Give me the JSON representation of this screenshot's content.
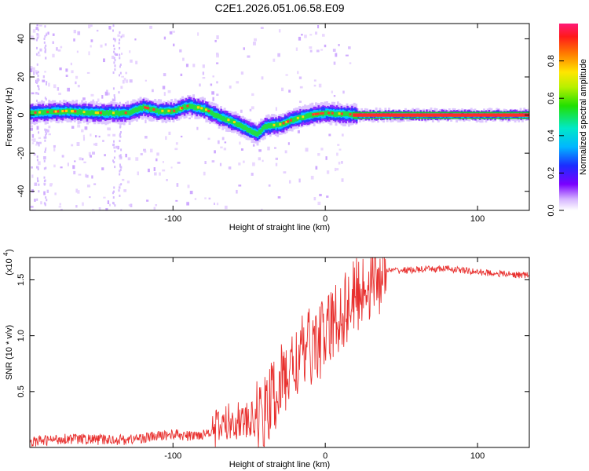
{
  "page_title": "C2E1.2026.051.06.58.E09",
  "colors": {
    "background": "#ffffff",
    "axis": "#000000",
    "snr_line": "#e8302e",
    "ridge": "#1fd630"
  },
  "chart_data": [
    {
      "type": "heatmap",
      "title": "C2E1.2026.051.06.58.E09",
      "xlabel": "Height of straight line (km)",
      "ylabel": "Frequency (Hz)",
      "xlim": [
        -194,
        134
      ],
      "ylim": [
        -50,
        48
      ],
      "x_ticks": [
        {
          "v": -100,
          "label": "-100"
        },
        {
          "v": 0,
          "label": "0"
        },
        {
          "v": 100,
          "label": "100"
        }
      ],
      "y_ticks": [
        {
          "v": 40,
          "label": "40"
        },
        {
          "v": 20,
          "label": "20"
        },
        {
          "v": 0,
          "label": "0"
        },
        {
          "v": -20,
          "label": "-20"
        },
        {
          "v": -40,
          "label": "-40"
        }
      ],
      "ridge_points": [
        [
          -194,
          1
        ],
        [
          -170,
          2
        ],
        [
          -150,
          1
        ],
        [
          -130,
          1
        ],
        [
          -120,
          4
        ],
        [
          -110,
          2
        ],
        [
          -100,
          2
        ],
        [
          -90,
          5
        ],
        [
          -80,
          3
        ],
        [
          -70,
          -1
        ],
        [
          -60,
          -4
        ],
        [
          -50,
          -8
        ],
        [
          -45,
          -10
        ],
        [
          -40,
          -6
        ],
        [
          -30,
          -5
        ],
        [
          -20,
          -2
        ],
        [
          -10,
          0
        ],
        [
          0,
          1
        ],
        [
          20,
          0
        ],
        [
          60,
          0
        ],
        [
          100,
          0
        ],
        [
          134,
          0
        ]
      ],
      "colorbar": {
        "label": "Normalized spectral amplitude",
        "range": [
          0,
          1
        ],
        "ticks": [
          {
            "v": 0,
            "label": "0.0"
          },
          {
            "v": 0.2,
            "label": "0.2"
          },
          {
            "v": 0.4,
            "label": "0.4"
          },
          {
            "v": 0.6,
            "label": "0.6"
          },
          {
            "v": 0.8,
            "label": "0.8"
          }
        ]
      }
    },
    {
      "type": "line",
      "xlabel": "Height of straight line (km)",
      "ylabel": "SNR (10 * v/v)",
      "y_multiplier_label": "(x10",
      "y_multiplier_exp": "4",
      "xlim": [
        -194,
        134
      ],
      "ylim": [
        0,
        1.7
      ],
      "x_ticks": [
        {
          "v": -100,
          "label": "-100"
        },
        {
          "v": 0,
          "label": "0"
        },
        {
          "v": 100,
          "label": "100"
        }
      ],
      "y_ticks": [
        {
          "v": 0.5,
          "label": "0.5"
        },
        {
          "v": 1.0,
          "label": "1.0"
        },
        {
          "v": 1.5,
          "label": "1.5"
        }
      ],
      "series": [
        {
          "name": "SNR",
          "points": [
            [
              -194,
              0.05
            ],
            [
              -170,
              0.08
            ],
            [
              -150,
              0.07
            ],
            [
              -130,
              0.07
            ],
            [
              -110,
              0.1
            ],
            [
              -100,
              0.12
            ],
            [
              -90,
              0.1
            ],
            [
              -80,
              0.12
            ],
            [
              -70,
              0.18
            ],
            [
              -60,
              0.25
            ],
            [
              -50,
              0.22
            ],
            [
              -40,
              0.3
            ],
            [
              -30,
              0.55
            ],
            [
              -20,
              0.75
            ],
            [
              -10,
              0.9
            ],
            [
              0,
              1.0
            ],
            [
              10,
              1.2
            ],
            [
              20,
              1.35
            ],
            [
              30,
              1.5
            ],
            [
              40,
              1.58
            ],
            [
              60,
              1.59
            ],
            [
              80,
              1.6
            ],
            [
              100,
              1.57
            ],
            [
              120,
              1.55
            ],
            [
              134,
              1.54
            ]
          ]
        }
      ]
    }
  ]
}
